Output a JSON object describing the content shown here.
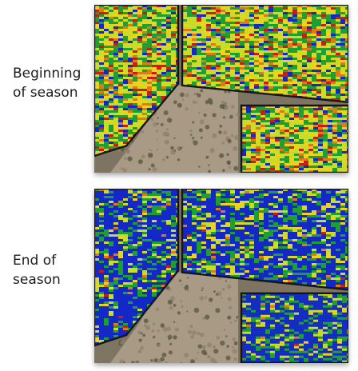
{
  "panels": [
    {
      "label_lines": [
        "Beginning",
        "of season"
      ],
      "palette": [
        "#1428c8",
        "#1f9e32",
        "#c8dc28",
        "#f0d21e",
        "#e07a18",
        "#c81e14"
      ],
      "weights": [
        0.1,
        0.3,
        0.28,
        0.16,
        0.08,
        0.08
      ]
    },
    {
      "label_lines": [
        "End of",
        "season"
      ],
      "palette": [
        "#1428c8",
        "#1f9e32",
        "#c8dc28",
        "#f0d21e",
        "#e07a18",
        "#c81e14"
      ],
      "weights": [
        0.58,
        0.22,
        0.12,
        0.05,
        0.02,
        0.01
      ]
    }
  ],
  "colors": {
    "bare_soil": "#a89a85",
    "field_border": "#15151a",
    "background": "#ffffff"
  }
}
